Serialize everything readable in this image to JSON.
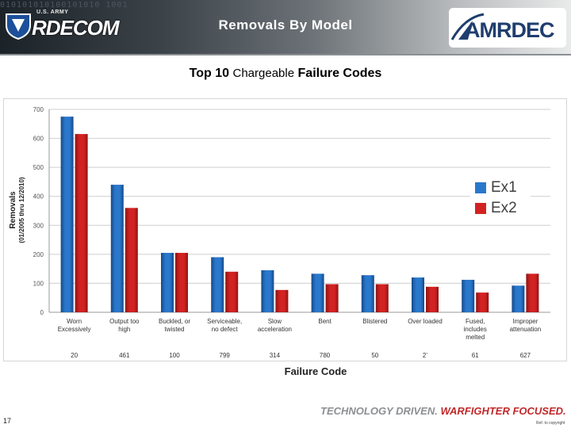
{
  "header": {
    "title": "Removals By Model",
    "left_logo_small": "U.S. ARMY",
    "left_logo_word": "RDECOM",
    "right_logo_word": "AMRDEC",
    "binary_pattern": "010101010100101010 1001010100101001"
  },
  "colors": {
    "series1": "#2a78cc",
    "series2": "#d32222",
    "grid": "#cfcfcf",
    "accent_red": "#c0282b"
  },
  "chart_data": {
    "type": "bar",
    "title_part1": "Top 10",
    "title_part2": "Chargeable",
    "title_part3": "Failure Codes",
    "xlabel": "Failure Code",
    "ylabel": "Removals",
    "ylabel_sub": "(01/2005 thru 12/2010)",
    "ylim": [
      0,
      700
    ],
    "yticks": [
      "0",
      "100",
      "200",
      "300",
      "400",
      "500",
      "600",
      "700"
    ],
    "grid": true,
    "legend_position": "right",
    "categories": [
      [
        "Worn",
        "Excessively"
      ],
      [
        "Output too",
        "high"
      ],
      [
        "Buckled, or",
        "twisted"
      ],
      [
        "Serviceable,",
        "no defect"
      ],
      [
        "Slow",
        "acceleration"
      ],
      [
        "Bent"
      ],
      [
        "Blistered"
      ],
      [
        "Over loaded"
      ],
      [
        "Fused,",
        "includes",
        "melted"
      ],
      [
        "Improper",
        "attenuation"
      ]
    ],
    "codes": [
      "20",
      "461",
      "100",
      "799",
      "314",
      "780",
      "50",
      "2’",
      "61",
      "627"
    ],
    "series": [
      {
        "name": "Ex1",
        "values": [
          675,
          440,
          205,
          190,
          145,
          133,
          128,
          120,
          112,
          92
        ]
      },
      {
        "name": "Ex2",
        "values": [
          615,
          360,
          205,
          140,
          77,
          97,
          97,
          88,
          68,
          133
        ]
      }
    ]
  },
  "footer": {
    "tagline_part1": "TECHNOLOGY DRIVEN.",
    "tagline_part2": "WARFIGHTER FOCUSED.",
    "page_number": "17",
    "note": "Ref. to copyright"
  }
}
